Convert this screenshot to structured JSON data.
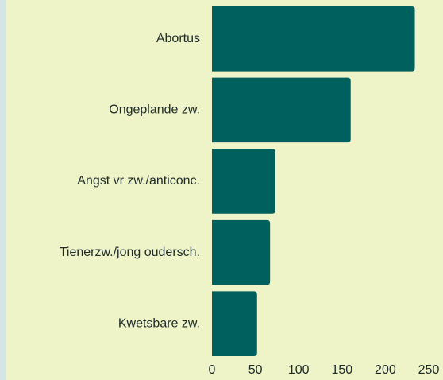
{
  "chart_data": {
    "type": "bar",
    "orientation": "horizontal",
    "categories": [
      "Abortus",
      "Ongeplande zw.",
      "Angst vr zw./anticonc.",
      "Tienerzw./jong oudersch.",
      "Kwetsbare zw."
    ],
    "values": [
      234,
      160,
      73,
      67,
      52
    ],
    "color": "#00605e",
    "xlim": [
      0,
      250
    ],
    "xticks": [
      0,
      50,
      100,
      150,
      200,
      250
    ],
    "grid": false
  }
}
